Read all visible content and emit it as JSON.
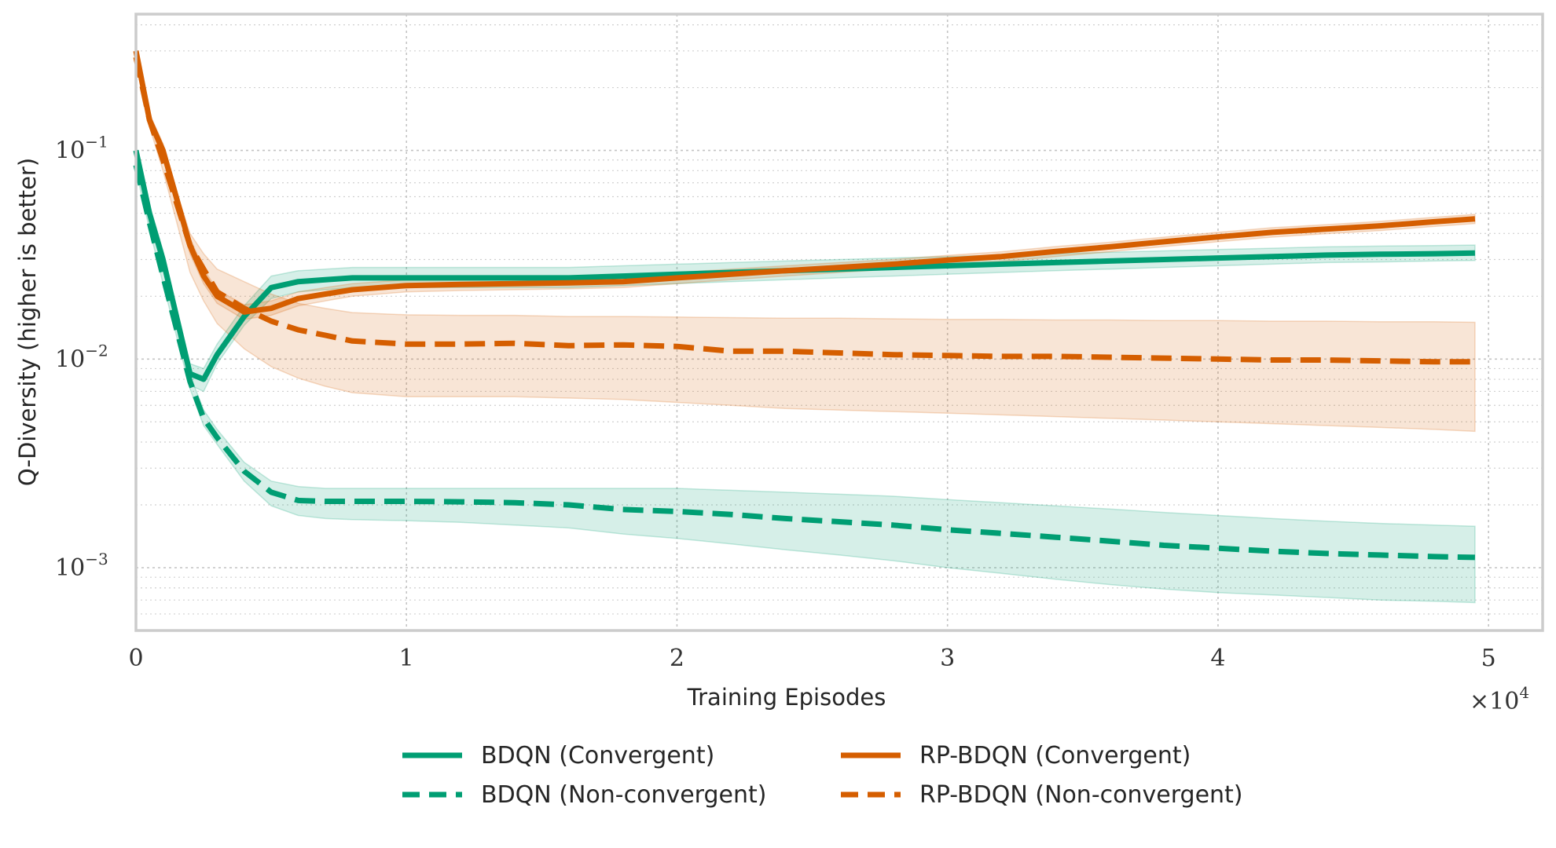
{
  "chart_data": {
    "type": "line",
    "title": "",
    "xlabel": "Training Episodes",
    "ylabel": "Q-Diversity (higher is better)",
    "x_multiplier_label": "×10",
    "x_multiplier_exp": "4",
    "xlim": [
      0,
      52000
    ],
    "ylim": [
      0.0005,
      0.45
    ],
    "yscale": "log",
    "grid": true,
    "legend_position": "bottom-center",
    "x_ticks": [
      0,
      10000,
      20000,
      30000,
      40000,
      50000
    ],
    "x_tick_labels": [
      "0",
      "1",
      "2",
      "3",
      "4",
      "5"
    ],
    "y_ticks": [
      {
        "value": 0.1,
        "base": "10",
        "exp": "−1"
      },
      {
        "value": 0.01,
        "base": "10",
        "exp": "−2"
      },
      {
        "value": 0.001,
        "base": "10",
        "exp": "−3"
      }
    ],
    "x": [
      0,
      500,
      1000,
      2000,
      2500,
      3000,
      4000,
      5000,
      6000,
      7000,
      8000,
      10000,
      12000,
      14000,
      16000,
      18000,
      20000,
      22000,
      24000,
      26000,
      28000,
      30000,
      32000,
      34000,
      36000,
      38000,
      40000,
      42000,
      44000,
      46000,
      48000,
      49500
    ],
    "series": [
      {
        "name": "BDQN (Convergent)",
        "color": "#009e73",
        "dash": "solid",
        "values": [
          0.1,
          0.05,
          0.03,
          0.0085,
          0.008,
          0.0105,
          0.016,
          0.022,
          0.0235,
          0.024,
          0.0245,
          0.0245,
          0.0245,
          0.0245,
          0.0245,
          0.025,
          0.0255,
          0.026,
          0.0265,
          0.027,
          0.0275,
          0.028,
          0.0285,
          0.029,
          0.0295,
          0.03,
          0.0305,
          0.031,
          0.0315,
          0.0318,
          0.032,
          0.0322
        ],
        "lower": [
          0.095,
          0.045,
          0.027,
          0.0075,
          0.007,
          0.0095,
          0.0145,
          0.0195,
          0.021,
          0.0215,
          0.022,
          0.022,
          0.022,
          0.022,
          0.022,
          0.0225,
          0.023,
          0.0235,
          0.024,
          0.0245,
          0.025,
          0.0255,
          0.026,
          0.0265,
          0.027,
          0.0275,
          0.028,
          0.0285,
          0.029,
          0.0292,
          0.0295,
          0.0297
        ],
        "upper": [
          0.105,
          0.055,
          0.033,
          0.0095,
          0.009,
          0.0118,
          0.018,
          0.025,
          0.0265,
          0.027,
          0.0275,
          0.0275,
          0.0275,
          0.0275,
          0.0275,
          0.028,
          0.0285,
          0.029,
          0.0295,
          0.03,
          0.0305,
          0.031,
          0.0315,
          0.032,
          0.0325,
          0.033,
          0.0335,
          0.034,
          0.0345,
          0.0348,
          0.035,
          0.0352
        ]
      },
      {
        "name": "BDQN (Non-convergent)",
        "color": "#009e73",
        "dash": "dashed",
        "values": [
          0.085,
          0.045,
          0.025,
          0.0078,
          0.0052,
          0.0042,
          0.0029,
          0.0023,
          0.0021,
          0.00208,
          0.00208,
          0.00208,
          0.00207,
          0.00205,
          0.002,
          0.0019,
          0.00186,
          0.0018,
          0.00172,
          0.00166,
          0.0016,
          0.00152,
          0.00146,
          0.0014,
          0.00134,
          0.00128,
          0.00124,
          0.0012,
          0.00117,
          0.00115,
          0.00113,
          0.00112
        ],
        "lower": [
          0.08,
          0.042,
          0.023,
          0.0072,
          0.0048,
          0.0039,
          0.0026,
          0.00198,
          0.00178,
          0.00172,
          0.0017,
          0.00168,
          0.00165,
          0.0016,
          0.00155,
          0.00145,
          0.00138,
          0.0013,
          0.00122,
          0.00115,
          0.00108,
          0.001,
          0.00094,
          0.00088,
          0.00083,
          0.00079,
          0.00076,
          0.00074,
          0.00072,
          0.0007,
          0.00069,
          0.00068
        ],
        "upper": [
          0.09,
          0.048,
          0.027,
          0.0084,
          0.0057,
          0.0046,
          0.0032,
          0.0026,
          0.00245,
          0.0024,
          0.0024,
          0.0024,
          0.0024,
          0.0024,
          0.0024,
          0.0024,
          0.0024,
          0.00235,
          0.0023,
          0.00225,
          0.0022,
          0.00212,
          0.00205,
          0.00198,
          0.00191,
          0.00184,
          0.00178,
          0.00172,
          0.00167,
          0.00163,
          0.0016,
          0.00158
        ]
      },
      {
        "name": "RP-BDQN (Convergent)",
        "color": "#d55e00",
        "dash": "solid",
        "values": [
          0.3,
          0.14,
          0.1,
          0.035,
          0.025,
          0.02,
          0.0168,
          0.0175,
          0.0195,
          0.0205,
          0.0215,
          0.0225,
          0.0228,
          0.023,
          0.0232,
          0.0235,
          0.0245,
          0.0255,
          0.0265,
          0.0275,
          0.0285,
          0.0298,
          0.031,
          0.0328,
          0.0345,
          0.0365,
          0.0385,
          0.0405,
          0.042,
          0.0435,
          0.0455,
          0.047
        ],
        "lower": [
          0.29,
          0.13,
          0.092,
          0.032,
          0.023,
          0.0185,
          0.0155,
          0.0162,
          0.018,
          0.019,
          0.02,
          0.021,
          0.0213,
          0.0215,
          0.0217,
          0.022,
          0.023,
          0.024,
          0.025,
          0.026,
          0.027,
          0.0282,
          0.0293,
          0.031,
          0.0327,
          0.0346,
          0.0365,
          0.0384,
          0.0399,
          0.0413,
          0.0432,
          0.0446
        ],
        "upper": [
          0.31,
          0.15,
          0.108,
          0.038,
          0.027,
          0.0215,
          0.0182,
          0.019,
          0.021,
          0.022,
          0.023,
          0.024,
          0.0243,
          0.0245,
          0.0247,
          0.025,
          0.026,
          0.027,
          0.028,
          0.029,
          0.03,
          0.0314,
          0.0327,
          0.0346,
          0.0363,
          0.0384,
          0.0405,
          0.0426,
          0.0441,
          0.0457,
          0.0478,
          0.0494
        ]
      },
      {
        "name": "RP-BDQN (Non-convergent)",
        "color": "#d55e00",
        "dash": "dashed",
        "values": [
          0.28,
          0.14,
          0.09,
          0.035,
          0.027,
          0.021,
          0.0175,
          0.0152,
          0.0138,
          0.013,
          0.0122,
          0.0118,
          0.0118,
          0.0119,
          0.0116,
          0.0117,
          0.0115,
          0.0109,
          0.0109,
          0.0107,
          0.0105,
          0.0104,
          0.0103,
          0.0103,
          0.0102,
          0.0101,
          0.01,
          0.0099,
          0.0099,
          0.0098,
          0.0097,
          0.0097
        ],
        "lower": [
          0.27,
          0.13,
          0.08,
          0.026,
          0.019,
          0.0148,
          0.0112,
          0.0092,
          0.0081,
          0.0074,
          0.0069,
          0.0066,
          0.0066,
          0.0066,
          0.0065,
          0.0064,
          0.0062,
          0.006,
          0.0058,
          0.0057,
          0.0056,
          0.0055,
          0.0054,
          0.0053,
          0.0052,
          0.0051,
          0.005,
          0.0049,
          0.0048,
          0.0047,
          0.0046,
          0.0045
        ],
        "upper": [
          0.29,
          0.15,
          0.1,
          0.04,
          0.032,
          0.027,
          0.0235,
          0.0205,
          0.0185,
          0.0175,
          0.0167,
          0.0163,
          0.0162,
          0.0162,
          0.016,
          0.016,
          0.0159,
          0.0158,
          0.0157,
          0.0157,
          0.0156,
          0.0155,
          0.0155,
          0.0154,
          0.0154,
          0.0153,
          0.0153,
          0.0152,
          0.0152,
          0.0151,
          0.0151,
          0.015
        ]
      }
    ]
  }
}
